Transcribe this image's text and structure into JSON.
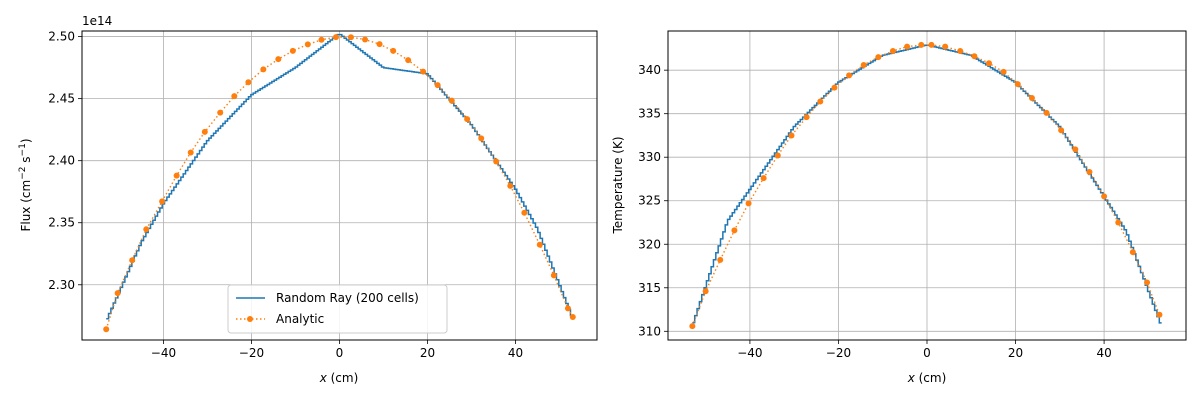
{
  "chart_data": [
    {
      "type": "line",
      "xlabel": "x (cm)",
      "ylabel": "Flux (cm⁻² s⁻¹)",
      "offset_label": "1e14",
      "xlim": [
        -58.5,
        58.5
      ],
      "ylim": [
        2.2555,
        2.5045
      ],
      "xticks": [
        -40,
        -20,
        0,
        20,
        40
      ],
      "xtick_labels": [
        "−40",
        "−20",
        "0",
        "20",
        "40"
      ],
      "yticks": [
        2.3,
        2.35,
        2.4,
        2.45,
        2.5
      ],
      "ytick_labels": [
        "2.30",
        "2.35",
        "2.40",
        "2.45",
        "2.50"
      ],
      "grid": true,
      "legend_position": "lower center",
      "series": [
        {
          "name": "Random Ray (200 cells)",
          "style": "step-line",
          "color": "#1f77b4",
          "x": [
            -53,
            -45,
            -40,
            -30,
            -20,
            -10,
            0,
            10,
            20,
            30,
            40,
            45,
            53
          ],
          "y": [
            2.2705,
            2.3342,
            2.3653,
            2.416,
            2.453,
            2.475,
            2.5023,
            2.475,
            2.47,
            2.4288,
            2.3771,
            2.345,
            2.273
          ]
        },
        {
          "name": "Analytic",
          "style": "dotted-line-markers",
          "color": "#ff7f0e",
          "x": [
            -53.0,
            -50.4,
            -47.1,
            -43.9,
            -40.3,
            -37.0,
            -33.8,
            -30.6,
            -27.1,
            -23.9,
            -20.7,
            -17.3,
            -13.9,
            -10.6,
            -7.2,
            -4.1,
            -0.8,
            2.6,
            5.8,
            9.1,
            12.2,
            15.6,
            19.0,
            22.3,
            25.5,
            29.0,
            32.2,
            35.6,
            38.8,
            42.0,
            45.5,
            48.7,
            51.9,
            53.0
          ],
          "y": [
            2.2642,
            2.2933,
            2.3198,
            2.3447,
            2.3672,
            2.388,
            2.4066,
            2.4232,
            2.4387,
            2.452,
            2.4632,
            2.4736,
            2.4818,
            2.4885,
            2.4937,
            2.4974,
            2.4996,
            2.4995,
            2.4976,
            2.4939,
            2.4885,
            2.481,
            2.4718,
            2.4609,
            2.4484,
            2.4335,
            2.418,
            2.3993,
            2.3797,
            2.358,
            2.3323,
            2.3076,
            2.281,
            2.274
          ]
        }
      ]
    },
    {
      "type": "line",
      "xlabel": "x (cm)",
      "ylabel": "Temperature (K)",
      "xlim": [
        -58.5,
        58.5
      ],
      "ylim": [
        309.0,
        344.5
      ],
      "xticks": [
        -40,
        -20,
        0,
        20,
        40
      ],
      "xtick_labels": [
        "−40",
        "−20",
        "0",
        "20",
        "40"
      ],
      "yticks": [
        310,
        315,
        320,
        325,
        330,
        335,
        340
      ],
      "ytick_labels": [
        "310",
        "315",
        "320",
        "325",
        "330",
        "335",
        "340"
      ],
      "grid": true,
      "series": [
        {
          "style": "step-line",
          "color": "#1f77b4",
          "x": [
            -53,
            -45,
            -30,
            -20,
            -10,
            0,
            10,
            20,
            30,
            45,
            53
          ],
          "y": [
            310.6,
            322.7,
            333.5,
            338.6,
            341.7,
            342.9,
            341.7,
            338.6,
            333.5,
            321.5,
            310.6
          ]
        },
        {
          "style": "dotted-line-markers",
          "color": "#ff7f0e",
          "x": [
            -53.0,
            -50.0,
            -46.7,
            -43.5,
            -40.3,
            -36.9,
            -33.7,
            -30.6,
            -27.2,
            -24.1,
            -20.9,
            -17.6,
            -14.3,
            -11.0,
            -7.7,
            -4.5,
            -1.3,
            1.0,
            4.1,
            7.5,
            10.7,
            14.0,
            17.3,
            20.5,
            23.7,
            27.0,
            30.3,
            33.5,
            36.7,
            40.0,
            43.2,
            46.5,
            49.7,
            52.5
          ],
          "y": [
            310.6,
            314.6,
            318.2,
            321.6,
            324.7,
            327.6,
            330.2,
            332.5,
            334.6,
            336.4,
            338.0,
            339.4,
            340.6,
            341.5,
            342.2,
            342.7,
            342.9,
            342.9,
            342.7,
            342.2,
            341.6,
            340.8,
            339.8,
            338.4,
            336.8,
            335.1,
            333.1,
            330.9,
            328.3,
            325.5,
            322.5,
            319.1,
            315.6,
            311.9
          ]
        }
      ]
    }
  ]
}
